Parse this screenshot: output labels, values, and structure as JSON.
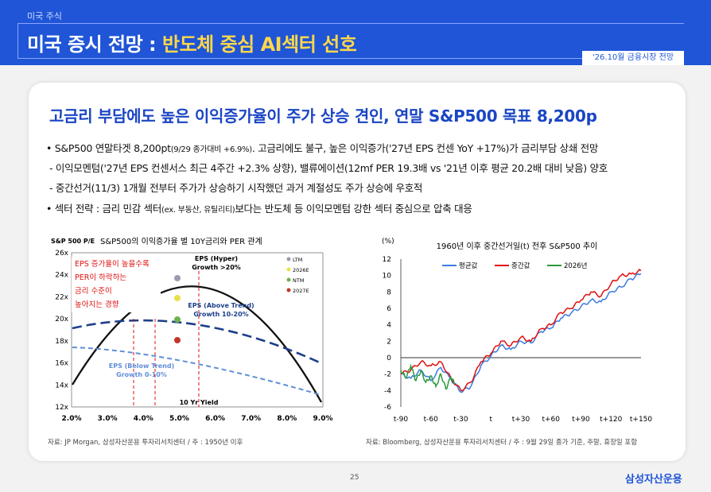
{
  "header": {
    "crumb": "미국 주식",
    "title_main": "미국 증시 전망 : ",
    "title_highlight": "반도체 중심 AI섹터 선호",
    "date_badge": "'26.10월 금융시장 전망"
  },
  "headline": "고금리 부담에도 높은 이익증가율이 주가 상승 견인, 연말 S&P500 목표 8,200p",
  "bullets": [
    {
      "text": "• S&P500 연말타겟 8,200pt",
      "small": "(9/29 종가대비 +6.9%)",
      "rest": ". 고금리에도 불구, 높은 이익증가('27년 EPS 컨센 YoY +17%)가 금리부담 상쇄 전망"
    },
    {
      "text": "- 이익모멘텀('27년 EPS 컨센서스 최근 4주간 +2.3% 상향), 밸류에이션(12mf PER 19.3배 vs '21년 이후 평균 20.2배 대비 낮음) 양호"
    },
    {
      "text": "- 중간선거(11/3) 1개월 전부터 주가가 상승하기 시작했던 과거 계절성도 주가 상승에 우호적"
    },
    {
      "text": "• 섹터 전략 : 금리 민감 섹터",
      "small": "(ex. 부동산, 유틸리티)",
      "rest": "보다는 반도체 등 이익모멘텀 강한 섹터 중심으로 압축 대응"
    }
  ],
  "chart_left": {
    "corner_label": "S&P 500 P/E",
    "title": "S&P500의 이익증가율 별 10Y금리와 PER 관계",
    "x_ticks": [
      "2.0%",
      "3.0%",
      "4.0%",
      "5.0%",
      "6.0%",
      "7.0%",
      "8.0%",
      "9.0%"
    ],
    "y_ticks": [
      "12x",
      "14x",
      "16x",
      "18x",
      "20x",
      "22x",
      "24x",
      "26x"
    ],
    "annotation_red": [
      "EPS 증가율이 높을수록",
      "PER이 하락하는",
      "금리 수준이",
      "높아지는 경향"
    ],
    "label_hyper": [
      "EPS (Hyper)",
      "Growth >20%"
    ],
    "label_above": [
      "EPS (Above Trend)",
      "Growth  10-20%"
    ],
    "label_below": [
      "EPS (Below Trend)",
      "Growth 0-10%"
    ],
    "label_10y": "10 Yr Yield",
    "legend": [
      {
        "name": "LTM",
        "color": "#9a9ab0"
      },
      {
        "name": "2026E",
        "color": "#e8e04a"
      },
      {
        "name": "NTM",
        "color": "#6db34a"
      },
      {
        "name": "2027E",
        "color": "#c0392b"
      }
    ],
    "source": "자료: JP Morgan, 삼성자산운용 투자리서치센터 / 주 : 1950년 이후"
  },
  "chart_data": {
    "type": "line",
    "title": "1960년 이후 중간선거일(t) 전후 S&P500 추이",
    "ylabel": "(%)",
    "ylim": [
      -6,
      12
    ],
    "y_ticks": [
      "12",
      "10",
      "8",
      "6",
      "4",
      "2",
      "0",
      "-2",
      "-4",
      "-6"
    ],
    "x_ticks": [
      "t-90",
      "t-60",
      "t-30",
      "t",
      "t+30",
      "t+60",
      "t+90",
      "t+120",
      "t+150"
    ],
    "xlim": [
      -90,
      150
    ],
    "series": [
      {
        "name": "평균값",
        "color": "#3b7be0",
        "x": [
          -90,
          -80,
          -70,
          -60,
          -50,
          -40,
          -30,
          -20,
          -10,
          0,
          10,
          20,
          30,
          40,
          50,
          60,
          70,
          80,
          90,
          100,
          110,
          120,
          130,
          140,
          150
        ],
        "y": [
          -2.0,
          -2.5,
          -1.5,
          -2.8,
          -1.2,
          -2.6,
          -4.2,
          -3.5,
          -1.0,
          0.2,
          1.5,
          1.0,
          2.0,
          1.8,
          3.2,
          3.6,
          4.8,
          5.4,
          6.2,
          7.0,
          6.8,
          8.0,
          8.6,
          9.6,
          10.2
        ]
      },
      {
        "name": "중간값",
        "color": "#e01010",
        "x": [
          -90,
          -80,
          -70,
          -60,
          -50,
          -40,
          -30,
          -20,
          -10,
          0,
          10,
          20,
          30,
          40,
          50,
          60,
          70,
          80,
          90,
          100,
          110,
          120,
          130,
          140,
          150
        ],
        "y": [
          -2.0,
          -1.5,
          -0.5,
          -1.0,
          -0.5,
          -2.5,
          -4.0,
          -3.0,
          -0.5,
          0.5,
          2.0,
          1.5,
          2.5,
          2.0,
          3.5,
          4.0,
          5.5,
          6.0,
          7.0,
          8.0,
          7.5,
          9.0,
          10.0,
          10.2,
          10.6
        ]
      },
      {
        "name": "2026년",
        "color": "#2a9a3a",
        "x": [
          -90,
          -85,
          -80,
          -75,
          -70,
          -65,
          -60,
          -55,
          -50,
          -45,
          -40,
          -36
        ],
        "y": [
          -1.5,
          -2.5,
          -1.0,
          -2.8,
          -1.6,
          -3.0,
          -2.2,
          -3.5,
          -2.0,
          -3.8,
          -2.4,
          -3.2
        ]
      }
    ],
    "source": "자료: Bloomberg, 삼성자산운용 투자리서치센터 / 주 : 9월 29일 종가 기준, 주말, 휴장일 포함"
  },
  "footer": {
    "page": "25",
    "logo": "삼성자산운용"
  }
}
